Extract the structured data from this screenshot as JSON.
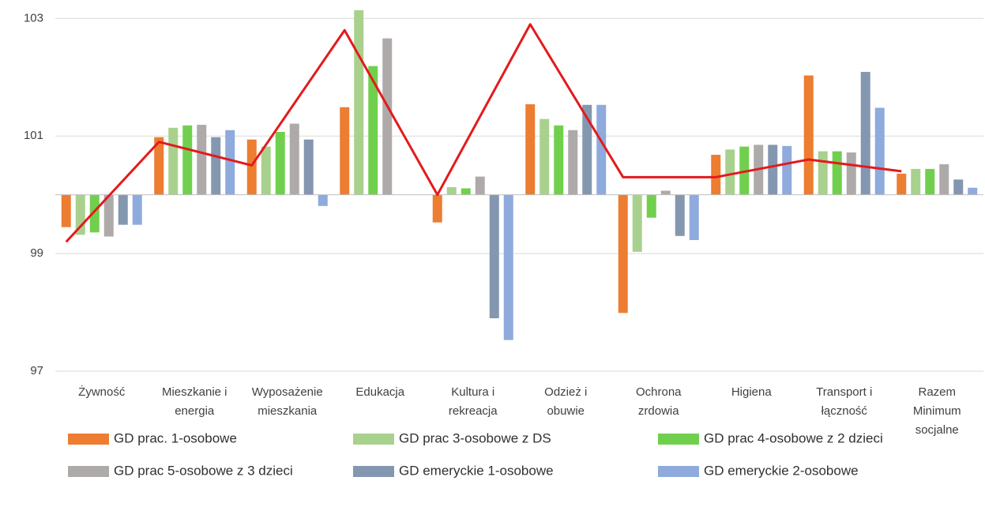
{
  "chart_data": {
    "type": "bar",
    "categories": [
      "Żywność",
      "Mieszkanie i energia",
      "Wyposażenie mieszkania",
      "Edukacja",
      "Kultura i rekreacja",
      "Odzież i obuwie",
      "Ochrona zrdowia",
      "Higiena",
      "Transport i łączność",
      "Razem Minimum socjalne"
    ],
    "series": [
      {
        "name": "GD prac. 1-osobowe",
        "color": "#ed7d31",
        "values": [
          99.45,
          100.98,
          100.94,
          101.49,
          99.53,
          101.54,
          97.99,
          100.68,
          102.03,
          100.36
        ]
      },
      {
        "name": "GD prac 3-osobowe z DS",
        "color": "#a9d18e",
        "values": [
          99.32,
          101.14,
          100.82,
          103.14,
          100.13,
          101.29,
          99.03,
          100.77,
          100.74,
          100.44
        ]
      },
      {
        "name": "GD prac 4-osobowe z 2 dzieci",
        "color": "#70d04e",
        "values": [
          99.36,
          101.18,
          101.07,
          102.19,
          100.11,
          101.18,
          99.61,
          100.82,
          100.74,
          100.44
        ]
      },
      {
        "name": "GD prac 5-osobowe z 3 dzieci",
        "color": "#aeaaaa",
        "values": [
          99.29,
          101.19,
          101.21,
          102.66,
          100.31,
          101.1,
          100.07,
          100.85,
          100.72,
          100.52
        ]
      },
      {
        "name": "GD emeryckie 1-osobowe",
        "color": "#8497b0",
        "values": [
          99.49,
          100.98,
          100.94,
          100,
          97.9,
          101.53,
          99.3,
          100.85,
          102.09,
          100.26
        ]
      },
      {
        "name": "GD emeryckie 2-osobowe",
        "color": "#8faadc",
        "values": [
          99.49,
          101.1,
          99.81,
          100,
          97.53,
          101.53,
          99.23,
          100.83,
          101.48,
          100.12
        ]
      }
    ],
    "line": {
      "color": "#e31a1c",
      "values": [
        99.2,
        100.9,
        100.5,
        102.8,
        100,
        102.9,
        100.3,
        100.3,
        100.6,
        100.4
      ]
    },
    "bar_base": 100,
    "ylim": [
      97,
      103.3
    ],
    "yticks": [
      97,
      99,
      101,
      103
    ],
    "grid": true
  }
}
